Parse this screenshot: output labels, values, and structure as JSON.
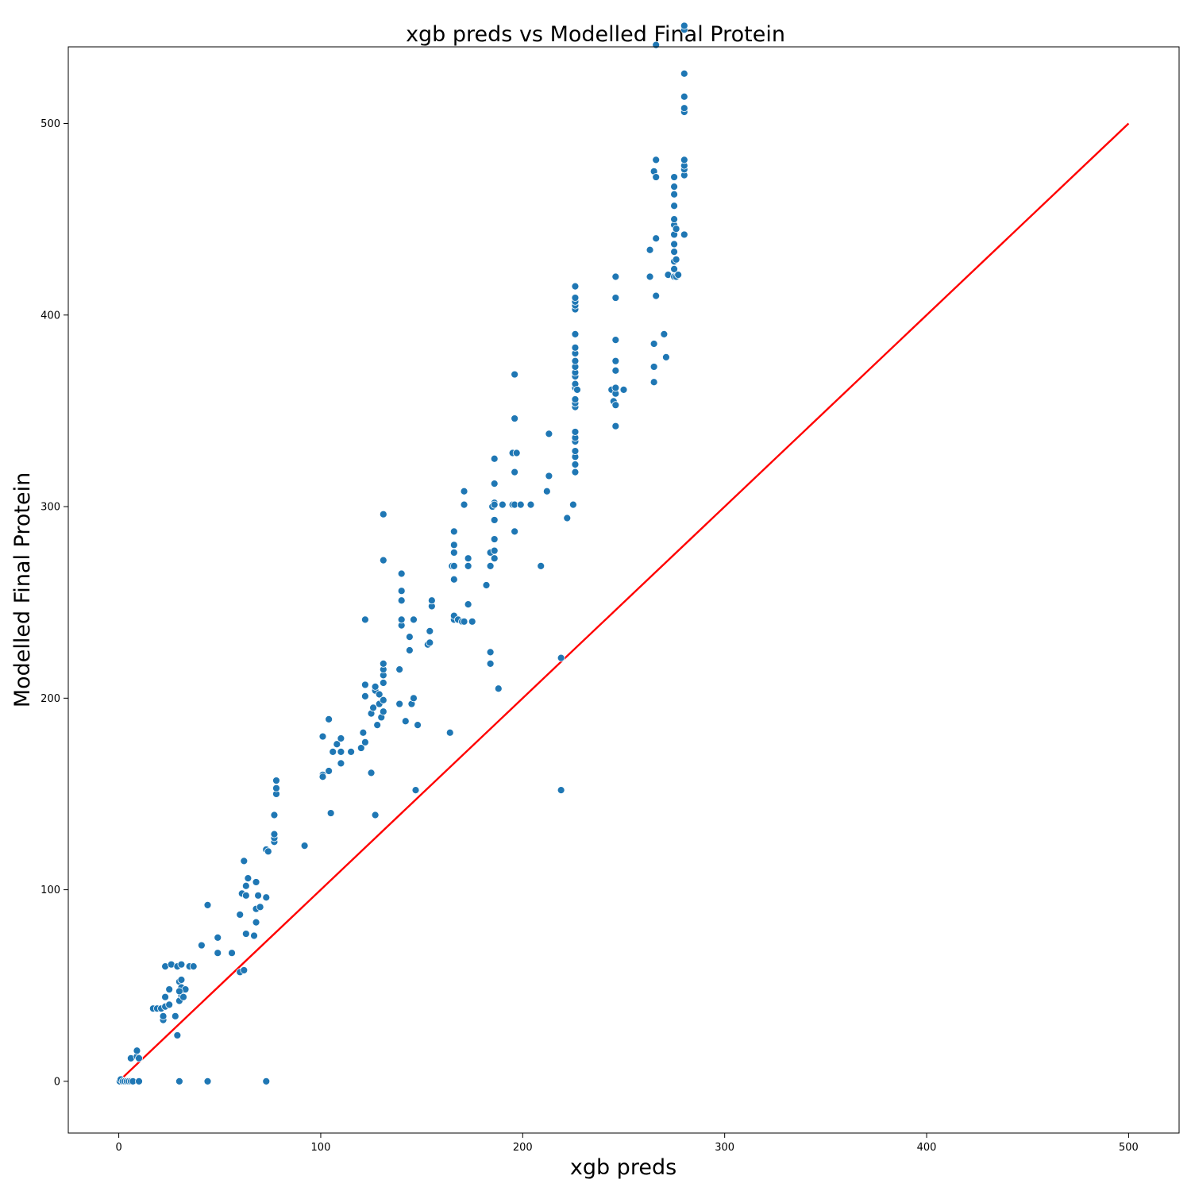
{
  "chart_data": {
    "type": "scatter",
    "title": "xgb preds vs Modelled Final Protein",
    "xlabel": "xgb preds",
    "ylabel": "Modelled Final Protein",
    "xlim": [
      -25,
      525
    ],
    "ylim": [
      -27,
      540
    ],
    "x_ticks": [
      0,
      100,
      200,
      300,
      400,
      500
    ],
    "y_ticks": [
      0,
      100,
      200,
      300,
      400,
      500
    ],
    "grid": false,
    "point_color": "#1f77b4",
    "line_color": "#ff0000",
    "reference_line": {
      "name": "",
      "x": [
        0,
        500
      ],
      "y": [
        0,
        500
      ]
    },
    "series": [
      {
        "name": "",
        "points": [
          [
            0.5,
            0
          ],
          [
            1,
            1
          ],
          [
            2,
            0
          ],
          [
            3,
            0
          ],
          [
            4,
            0
          ],
          [
            5,
            0
          ],
          [
            6,
            0
          ],
          [
            7,
            0
          ],
          [
            10,
            0
          ],
          [
            6,
            12
          ],
          [
            9,
            13
          ],
          [
            9,
            16
          ],
          [
            10,
            12
          ],
          [
            17,
            38
          ],
          [
            19,
            38
          ],
          [
            21,
            38
          ],
          [
            23,
            39
          ],
          [
            23,
            44
          ],
          [
            22,
            32
          ],
          [
            22,
            34
          ],
          [
            25,
            40
          ],
          [
            25,
            48
          ],
          [
            23,
            60
          ],
          [
            26,
            61
          ],
          [
            29,
            60
          ],
          [
            31,
            61
          ],
          [
            28,
            34
          ],
          [
            29,
            24
          ],
          [
            30,
            0
          ],
          [
            44,
            0
          ],
          [
            73,
            0
          ],
          [
            30,
            42
          ],
          [
            31,
            45
          ],
          [
            30,
            52
          ],
          [
            31,
            53
          ],
          [
            31,
            49
          ],
          [
            33,
            48
          ],
          [
            30,
            47
          ],
          [
            32,
            44
          ],
          [
            35,
            60
          ],
          [
            37,
            60
          ],
          [
            41,
            71
          ],
          [
            44,
            92
          ],
          [
            49,
            75
          ],
          [
            49,
            67
          ],
          [
            56,
            67
          ],
          [
            60,
            87
          ],
          [
            60,
            57
          ],
          [
            62,
            58
          ],
          [
            61,
            98
          ],
          [
            63,
            97
          ],
          [
            63,
            102
          ],
          [
            63,
            77
          ],
          [
            62,
            115
          ],
          [
            64,
            106
          ],
          [
            67,
            76
          ],
          [
            68,
            83
          ],
          [
            68,
            90
          ],
          [
            69,
            97
          ],
          [
            68,
            104
          ],
          [
            70,
            91
          ],
          [
            73,
            96
          ],
          [
            73,
            121
          ],
          [
            74,
            120
          ],
          [
            77,
            125
          ],
          [
            77,
            127
          ],
          [
            77,
            129
          ],
          [
            77,
            139
          ],
          [
            78,
            150
          ],
          [
            78,
            153
          ],
          [
            78,
            157
          ],
          [
            92,
            123
          ],
          [
            101,
            160
          ],
          [
            101,
            159
          ],
          [
            101,
            180
          ],
          [
            104,
            162
          ],
          [
            104,
            189
          ],
          [
            105,
            140
          ],
          [
            106,
            172
          ],
          [
            108,
            176
          ],
          [
            110,
            166
          ],
          [
            110,
            172
          ],
          [
            110,
            179
          ],
          [
            115,
            172
          ],
          [
            120,
            174
          ],
          [
            121,
            182
          ],
          [
            122,
            177
          ],
          [
            122,
            201
          ],
          [
            122,
            207
          ],
          [
            122,
            241
          ],
          [
            125,
            161
          ],
          [
            125,
            192
          ],
          [
            126,
            195
          ],
          [
            128,
            186
          ],
          [
            127,
            204
          ],
          [
            127,
            206
          ],
          [
            127,
            139
          ],
          [
            129,
            197
          ],
          [
            129,
            202
          ],
          [
            130,
            190
          ],
          [
            131,
            193
          ],
          [
            131,
            199
          ],
          [
            131,
            208
          ],
          [
            131,
            212
          ],
          [
            131,
            215
          ],
          [
            131,
            218
          ],
          [
            131,
            272
          ],
          [
            131,
            296
          ],
          [
            139,
            197
          ],
          [
            139,
            215
          ],
          [
            140,
            238
          ],
          [
            140,
            241
          ],
          [
            140,
            251
          ],
          [
            140,
            256
          ],
          [
            140,
            265
          ],
          [
            142,
            188
          ],
          [
            144,
            225
          ],
          [
            144,
            232
          ],
          [
            145,
            197
          ],
          [
            146,
            200
          ],
          [
            146,
            241
          ],
          [
            147,
            152
          ],
          [
            148,
            186
          ],
          [
            153,
            228
          ],
          [
            154,
            229
          ],
          [
            154,
            235
          ],
          [
            155,
            248
          ],
          [
            155,
            251
          ],
          [
            164,
            182
          ],
          [
            165,
            269
          ],
          [
            166,
            262
          ],
          [
            166,
            269
          ],
          [
            166,
            276
          ],
          [
            166,
            280
          ],
          [
            166,
            287
          ],
          [
            166,
            241
          ],
          [
            166,
            243
          ],
          [
            168,
            241
          ],
          [
            170,
            240
          ],
          [
            171,
            308
          ],
          [
            171,
            301
          ],
          [
            171,
            240
          ],
          [
            173,
            249
          ],
          [
            173,
            269
          ],
          [
            173,
            273
          ],
          [
            175,
            240
          ],
          [
            182,
            259
          ],
          [
            184,
            224
          ],
          [
            184,
            218
          ],
          [
            184,
            269
          ],
          [
            184,
            276
          ],
          [
            185,
            300
          ],
          [
            186,
            277
          ],
          [
            186,
            273
          ],
          [
            186,
            283
          ],
          [
            186,
            293
          ],
          [
            186,
            302
          ],
          [
            186,
            312
          ],
          [
            186,
            325
          ],
          [
            186,
            301
          ],
          [
            188,
            205
          ],
          [
            190,
            301
          ],
          [
            195,
            328
          ],
          [
            195,
            301
          ],
          [
            196,
            301
          ],
          [
            196,
            287
          ],
          [
            196,
            318
          ],
          [
            196,
            346
          ],
          [
            196,
            369
          ],
          [
            197,
            328
          ],
          [
            199,
            301
          ],
          [
            204,
            301
          ],
          [
            209,
            269
          ],
          [
            212,
            308
          ],
          [
            213,
            316
          ],
          [
            213,
            338
          ],
          [
            219,
            221
          ],
          [
            219,
            152
          ],
          [
            222,
            294
          ],
          [
            225,
            301
          ],
          [
            226,
            318
          ],
          [
            226,
            322
          ],
          [
            226,
            326
          ],
          [
            226,
            329
          ],
          [
            226,
            334
          ],
          [
            226,
            336
          ],
          [
            226,
            339
          ],
          [
            226,
            352
          ],
          [
            226,
            354
          ],
          [
            226,
            356
          ],
          [
            226,
            362
          ],
          [
            226,
            364
          ],
          [
            226,
            368
          ],
          [
            226,
            370
          ],
          [
            226,
            373
          ],
          [
            226,
            376
          ],
          [
            226,
            380
          ],
          [
            226,
            383
          ],
          [
            226,
            390
          ],
          [
            226,
            403
          ],
          [
            226,
            405
          ],
          [
            226,
            407
          ],
          [
            226,
            409
          ],
          [
            226,
            415
          ],
          [
            227,
            361
          ],
          [
            244,
            361
          ],
          [
            245,
            355
          ],
          [
            246,
            359
          ],
          [
            246,
            342
          ],
          [
            246,
            353
          ],
          [
            246,
            362
          ],
          [
            246,
            371
          ],
          [
            246,
            376
          ],
          [
            246,
            387
          ],
          [
            246,
            409
          ],
          [
            246,
            420
          ],
          [
            250,
            361
          ],
          [
            263,
            420
          ],
          [
            263,
            434
          ],
          [
            265,
            365
          ],
          [
            265,
            373
          ],
          [
            265,
            385
          ],
          [
            265,
            475
          ],
          [
            266,
            410
          ],
          [
            266,
            440
          ],
          [
            266,
            472
          ],
          [
            266,
            481
          ],
          [
            266,
            541
          ],
          [
            270,
            390
          ],
          [
            271,
            378
          ],
          [
            272,
            421
          ],
          [
            275,
            420
          ],
          [
            275,
            424
          ],
          [
            275,
            428
          ],
          [
            275,
            433
          ],
          [
            275,
            437
          ],
          [
            275,
            442
          ],
          [
            275,
            447
          ],
          [
            275,
            450
          ],
          [
            275,
            457
          ],
          [
            275,
            463
          ],
          [
            275,
            467
          ],
          [
            275,
            472
          ],
          [
            276,
            420
          ],
          [
            276,
            429
          ],
          [
            276,
            445
          ],
          [
            277,
            421
          ],
          [
            280,
            442
          ],
          [
            280,
            473
          ],
          [
            280,
            476
          ],
          [
            280,
            478
          ],
          [
            280,
            481
          ],
          [
            280,
            506
          ],
          [
            280,
            508
          ],
          [
            280,
            514
          ],
          [
            280,
            526
          ],
          [
            280,
            549
          ],
          [
            280,
            551
          ]
        ]
      }
    ]
  }
}
